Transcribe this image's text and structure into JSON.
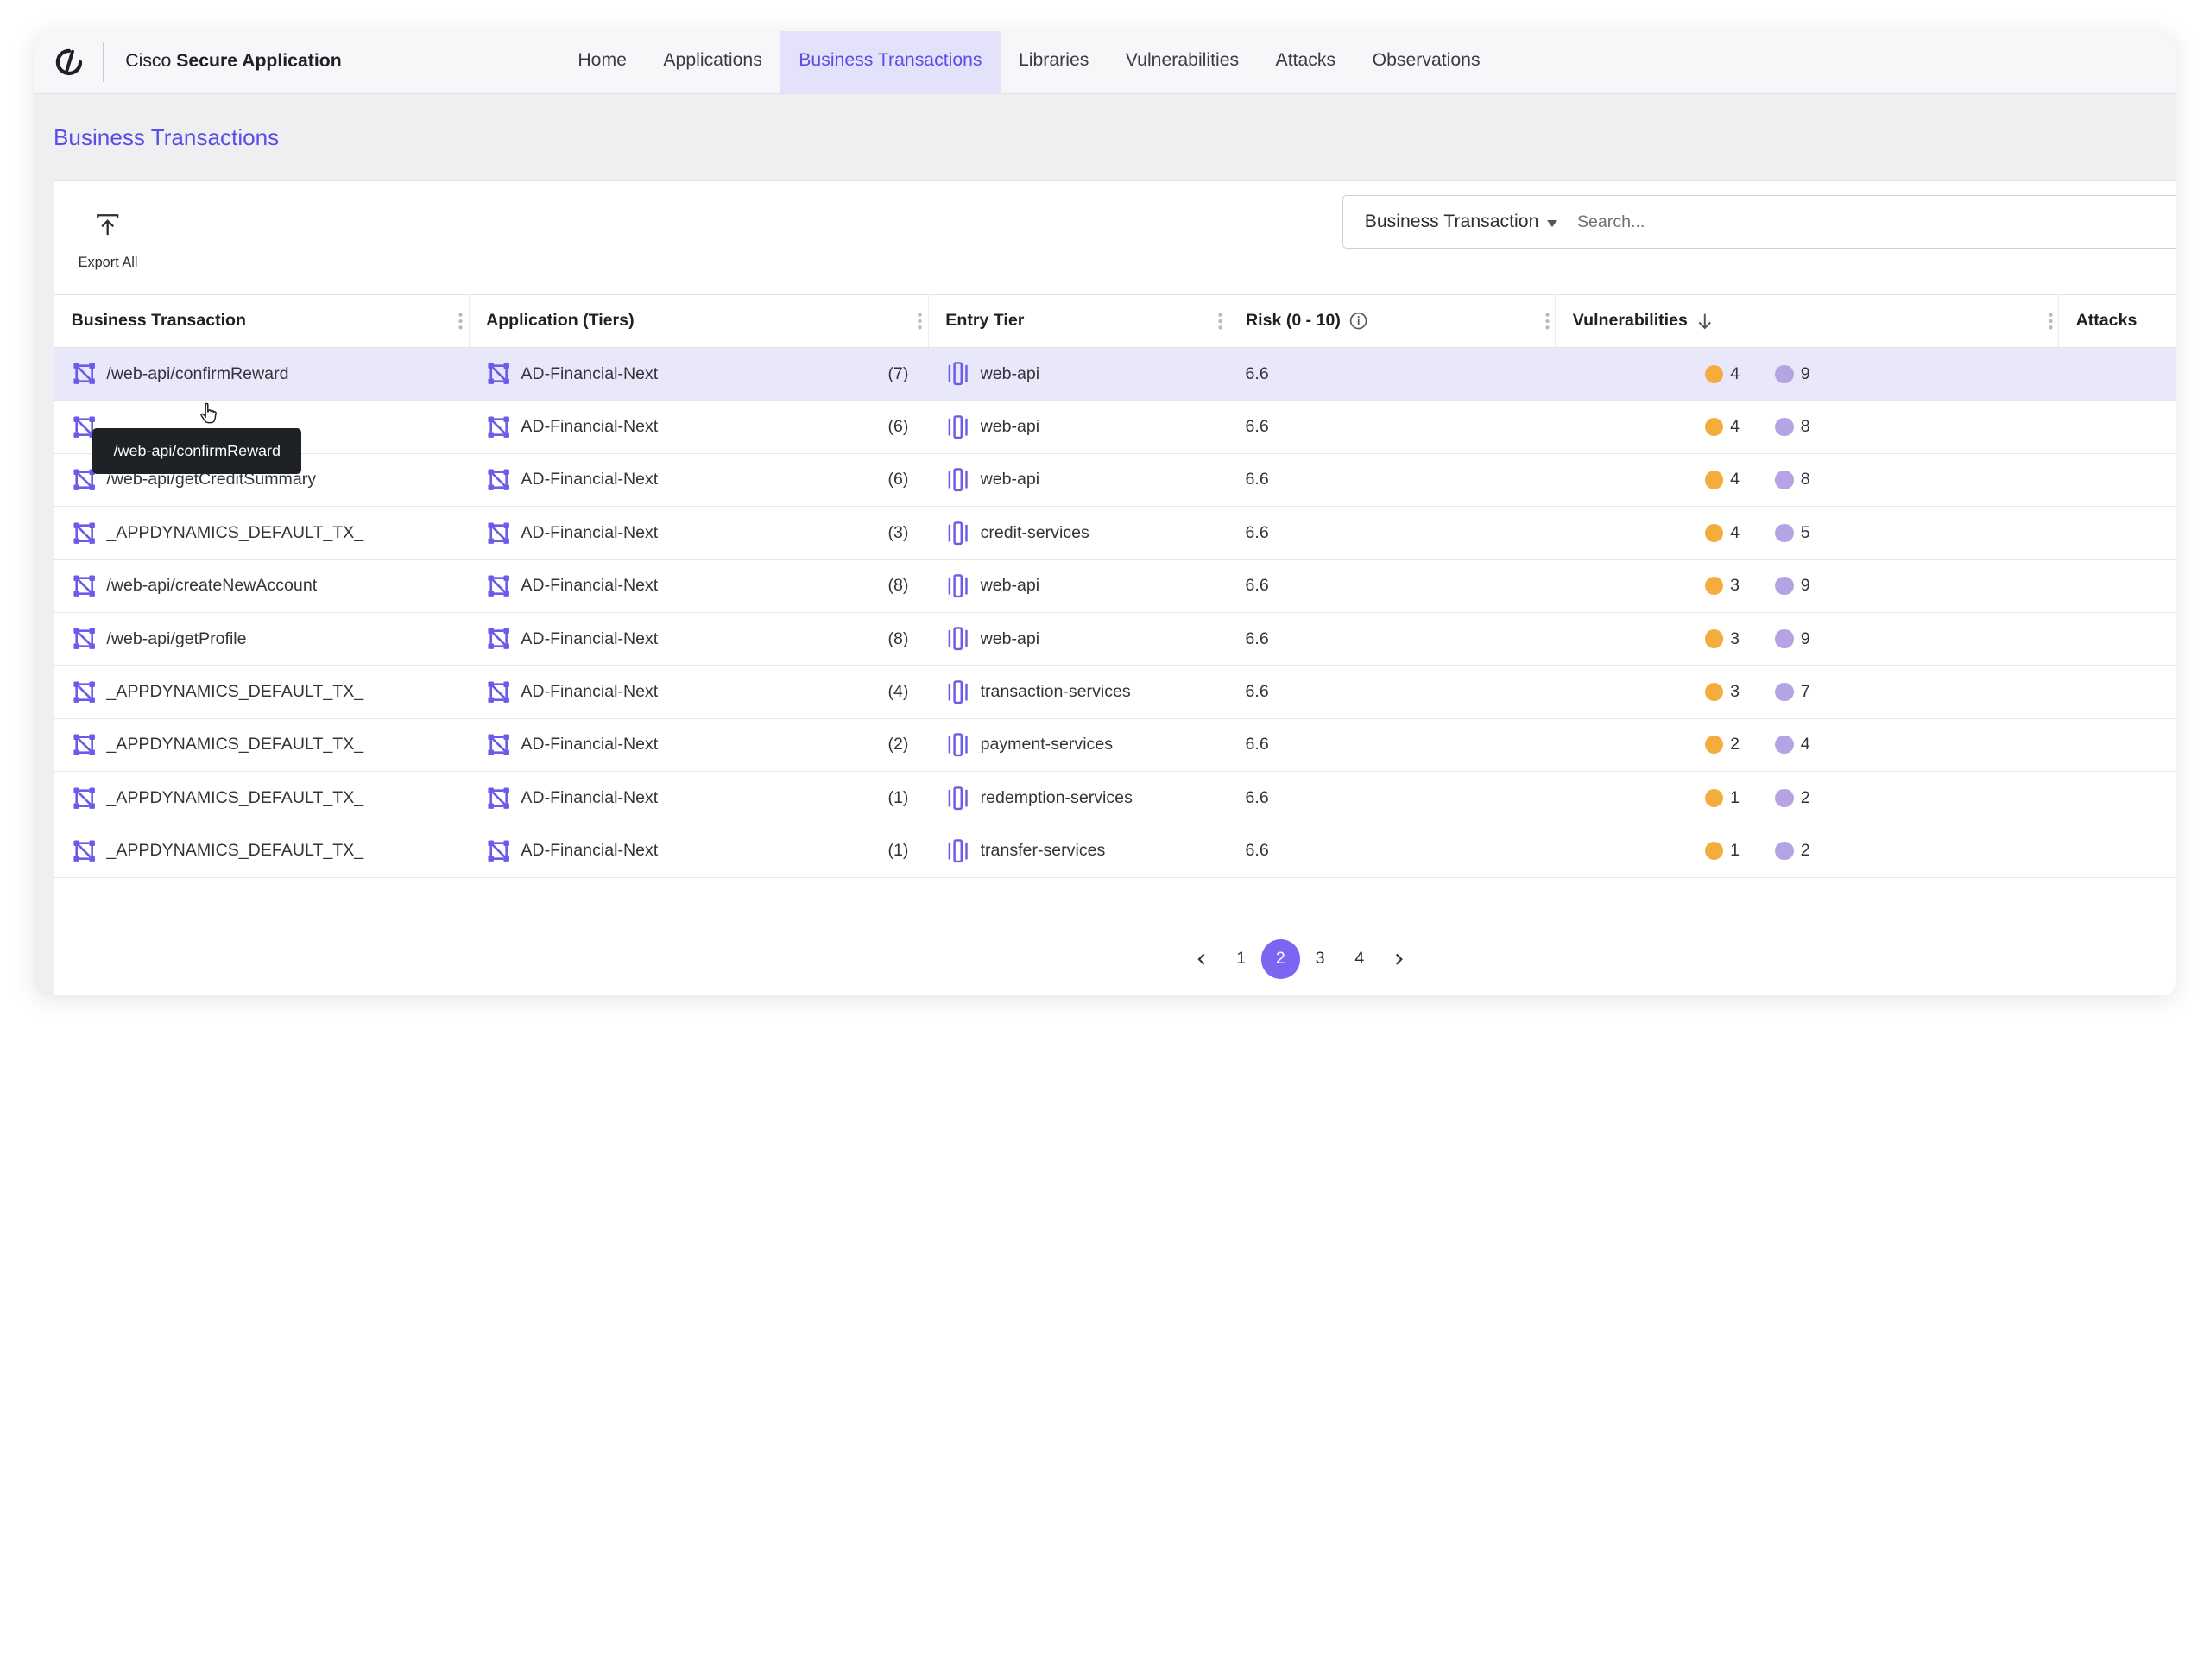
{
  "app": {
    "brand_prefix": "Cisco",
    "brand_name": "Secure Application"
  },
  "nav": {
    "tabs": [
      {
        "label": "Home",
        "active": false
      },
      {
        "label": "Applications",
        "active": false
      },
      {
        "label": "Business Transactions",
        "active": true
      },
      {
        "label": "Libraries",
        "active": false
      },
      {
        "label": "Vulnerabilities",
        "active": false
      },
      {
        "label": "Attacks",
        "active": false
      },
      {
        "label": "Observations",
        "active": false
      }
    ]
  },
  "page": {
    "title": "Business Transactions"
  },
  "toolbar": {
    "export_label": "Export All"
  },
  "search": {
    "filter_selected": "Business Transaction",
    "placeholder": "Search..."
  },
  "table": {
    "columns": [
      "Business Transaction",
      "Application (Tiers)",
      "Entry Tier",
      "Risk (0 - 10)",
      "Vulnerabilities",
      "Attacks"
    ],
    "rows": [
      {
        "bt": "/web-api/confirmReward",
        "app": "AD-Financial-Next",
        "tiers": "(7)",
        "tier": "web-api",
        "risk": "6.6",
        "v_high": "4",
        "v_med": "9"
      },
      {
        "bt": "",
        "app": "AD-Financial-Next",
        "tiers": "(6)",
        "tier": "web-api",
        "risk": "6.6",
        "v_high": "4",
        "v_med": "8"
      },
      {
        "bt": "/web-api/getCreditSummary",
        "app": "AD-Financial-Next",
        "tiers": "(6)",
        "tier": "web-api",
        "risk": "6.6",
        "v_high": "4",
        "v_med": "8"
      },
      {
        "bt": "_APPDYNAMICS_DEFAULT_TX_",
        "app": "AD-Financial-Next",
        "tiers": "(3)",
        "tier": "credit-services",
        "risk": "6.6",
        "v_high": "4",
        "v_med": "5"
      },
      {
        "bt": "/web-api/createNewAccount",
        "app": "AD-Financial-Next",
        "tiers": "(8)",
        "tier": "web-api",
        "risk": "6.6",
        "v_high": "3",
        "v_med": "9"
      },
      {
        "bt": "/web-api/getProfile",
        "app": "AD-Financial-Next",
        "tiers": "(8)",
        "tier": "web-api",
        "risk": "6.6",
        "v_high": "3",
        "v_med": "9"
      },
      {
        "bt": "_APPDYNAMICS_DEFAULT_TX_",
        "app": "AD-Financial-Next",
        "tiers": "(4)",
        "tier": "transaction-services",
        "risk": "6.6",
        "v_high": "3",
        "v_med": "7"
      },
      {
        "bt": "_APPDYNAMICS_DEFAULT_TX_",
        "app": "AD-Financial-Next",
        "tiers": "(2)",
        "tier": "payment-services",
        "risk": "6.6",
        "v_high": "2",
        "v_med": "4"
      },
      {
        "bt": "_APPDYNAMICS_DEFAULT_TX_",
        "app": "AD-Financial-Next",
        "tiers": "(1)",
        "tier": "redemption-services",
        "risk": "6.6",
        "v_high": "1",
        "v_med": "2"
      },
      {
        "bt": "_APPDYNAMICS_DEFAULT_TX_",
        "app": "AD-Financial-Next",
        "tiers": "(1)",
        "tier": "transfer-services",
        "risk": "6.6",
        "v_high": "1",
        "v_med": "2"
      }
    ]
  },
  "tooltip": {
    "text": "/web-api/confirmReward"
  },
  "pagination": {
    "pages": [
      "1",
      "2",
      "3",
      "4"
    ],
    "current": "2"
  },
  "icons": {
    "logo": "cisco-logo-icon",
    "export": "export-upload-icon",
    "transaction": "transaction-flow-icon",
    "tier": "tier-node-icon",
    "info": "info-icon",
    "sort": "sort-down-arrow-icon"
  },
  "colors": {
    "accent": "#5b4ee8",
    "active_tab_bg": "#e4e2fb",
    "row_highlight": "#e9e8fa",
    "severity_high": "#f4ad3d",
    "severity_medium": "#b5a4e3",
    "pager_active": "#7c66f1"
  }
}
